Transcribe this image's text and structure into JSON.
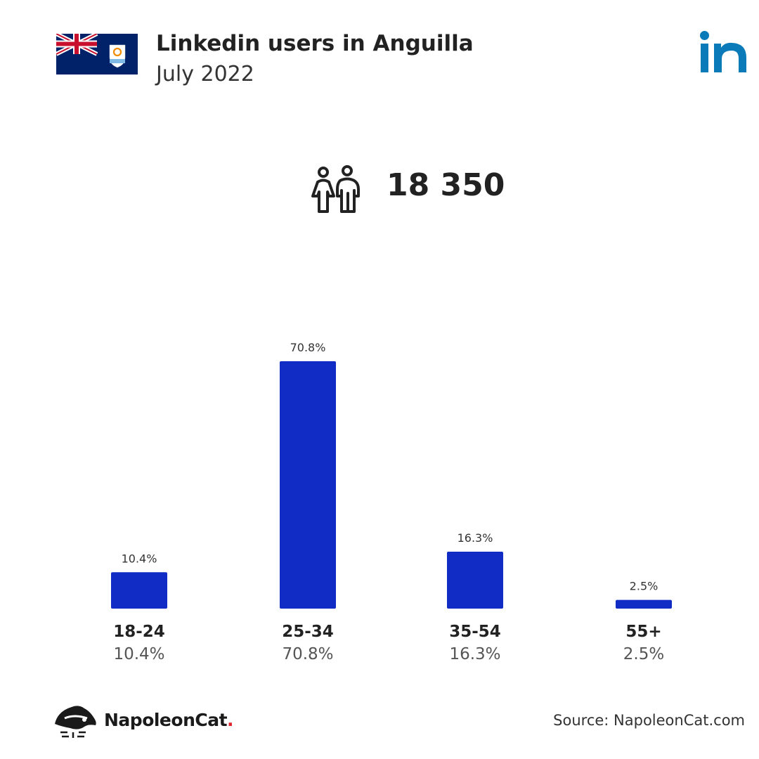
{
  "header": {
    "title": "Linkedin users in Anguilla",
    "subtitle": "July 2022"
  },
  "summary": {
    "total_users": "18 350"
  },
  "colors": {
    "bar": "#102cc4",
    "linkedin": "#0a7ab8",
    "brand_dot": "#e0262c"
  },
  "icons": {
    "flag": "anguilla-flag-icon",
    "linkedin": "linkedin-logo-icon",
    "users": "users-icon",
    "brand": "napoleoncat-logo-icon"
  },
  "chart_data": {
    "type": "bar",
    "categories": [
      "18-24",
      "25-34",
      "35-54",
      "55+"
    ],
    "values": [
      10.4,
      70.8,
      16.3,
      2.5
    ],
    "value_labels": [
      "10.4%",
      "70.8%",
      "16.3%",
      "2.5%"
    ],
    "ylim": [
      0,
      70.8
    ],
    "grid": false
  },
  "footer": {
    "brand_name": "NapoleonCat",
    "brand_dot": ".",
    "source": "Source: NapoleonCat.com"
  }
}
